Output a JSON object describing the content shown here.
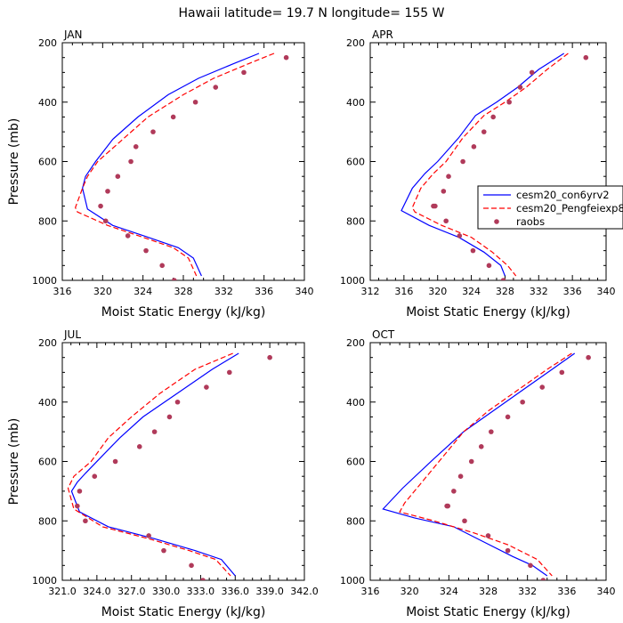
{
  "chart_data": {
    "type": "line",
    "title": "Hawaii  latitude= 19.7 N longitude= 155 W",
    "legend": {
      "placement": "right of APR panel",
      "entries": [
        {
          "label": "cesm20_con6yrv2",
          "style": "solid",
          "color": "#0000ff"
        },
        {
          "label": "cesm20_Pengfeiexp8",
          "style": "dashed",
          "color": "#ff0000"
        },
        {
          "label": "raobs",
          "style": "dots",
          "color": "#b03a5a"
        }
      ]
    },
    "panels": [
      {
        "id": "jan",
        "label": "JAN",
        "xlabel": "Moist Static Energy (kJ/kg)",
        "ylabel": "Pressure (mb)",
        "xlim": [
          316,
          340
        ],
        "ylim": [
          1000,
          200
        ],
        "xticks": [
          316,
          320,
          324,
          328,
          332,
          336,
          340
        ],
        "xtick_labels": [
          "316",
          "320",
          "324",
          "328",
          "332",
          "336",
          "340"
        ],
        "yticks": [
          200,
          400,
          600,
          800,
          1000
        ],
        "ytick_labels": [
          "200",
          "400",
          "600",
          "800",
          "1000"
        ],
        "series": [
          {
            "name": "cesm20_con6yrv2",
            "x": [
              335.5,
              333.0,
              329.5,
              326.5,
              323.5,
              321.0,
              319.3,
              318.3,
              318.0,
              318.5,
              321.0,
              324.5,
              327.5,
              329.0,
              329.8
            ],
            "y": [
              236,
              270,
              320,
              375,
              450,
              525,
              600,
              650,
              690,
              760,
              815,
              855,
              890,
              925,
              985
            ]
          },
          {
            "name": "cesm20_Pengfeiexp8",
            "x": [
              337.0,
              334.5,
              331.0,
              328.0,
              324.5,
              322.0,
              319.5,
              318.5,
              318.0,
              317.3,
              317.5,
              320.5,
              324.0,
              327.0,
              328.5,
              329.3
            ],
            "y": [
              236,
              270,
              320,
              375,
              450,
              525,
              600,
              650,
              690,
              755,
              770,
              815,
              855,
              890,
              925,
              985
            ]
          },
          {
            "name": "raobs",
            "x": [
              338.2,
              334.0,
              331.2,
              329.2,
              327.0,
              325.0,
              323.3,
              322.8,
              321.5,
              320.5,
              319.8,
              320.3,
              322.5,
              324.3,
              325.9,
              327.1
            ],
            "y": [
              250,
              300,
              350,
              400,
              450,
              500,
              550,
              600,
              650,
              700,
              750,
              800,
              850,
              900,
              950,
              1000
            ]
          }
        ]
      },
      {
        "id": "apr",
        "label": "APR",
        "xlabel": "Moist Static Energy (kJ/kg)",
        "ylabel": "",
        "xlim": [
          312,
          340
        ],
        "ylim": [
          1000,
          200
        ],
        "xticks": [
          312,
          316,
          320,
          324,
          328,
          332,
          336,
          340
        ],
        "xtick_labels": [
          "312",
          "316",
          "320",
          "324",
          "328",
          "332",
          "336",
          "340"
        ],
        "yticks": [
          200,
          400,
          600,
          800,
          1000
        ],
        "ytick_labels": [
          "200",
          "400",
          "600",
          "800",
          "1000"
        ],
        "series": [
          {
            "name": "cesm20_con6yrv2",
            "x": [
              335.0,
              332.0,
              329.5,
              327.0,
              324.5,
              322.5,
              320.0,
              318.5,
              317.0,
              315.7,
              319.0,
              322.5,
              325.5,
              327.5,
              328.0
            ],
            "y": [
              236,
              290,
              350,
              400,
              445,
              520,
              600,
              640,
              690,
              765,
              815,
              855,
              905,
              950,
              985
            ]
          },
          {
            "name": "cesm20_Pengfeiexp8",
            "x": [
              335.5,
              333.0,
              330.5,
              328.0,
              325.5,
              323.0,
              321.0,
              319.5,
              318.0,
              317.0,
              317.3,
              320.5,
              324.0,
              326.5,
              328.3,
              329.3
            ],
            "y": [
              236,
              290,
              350,
              400,
              445,
              520,
              600,
              640,
              690,
              755,
              770,
              815,
              855,
              905,
              950,
              985
            ]
          },
          {
            "name": "raobs",
            "x": [
              337.6,
              331.2,
              329.8,
              328.5,
              326.6,
              325.5,
              324.3,
              323.0,
              321.3,
              320.7,
              319.7,
              319.5,
              321.0,
              322.6,
              324.2,
              326.1,
              327.8
            ],
            "y": [
              250,
              300,
              350,
              400,
              450,
              500,
              550,
              600,
              650,
              700,
              750,
              750,
              800,
              850,
              900,
              950,
              1000
            ]
          }
        ]
      },
      {
        "id": "jul",
        "label": "JUL",
        "xlabel": "Moist Static Energy (kJ/kg)",
        "ylabel": "Pressure (mb)",
        "xlim": [
          321,
          342
        ],
        "ylim": [
          1000,
          200
        ],
        "xticks": [
          321,
          324,
          327,
          330,
          333,
          336,
          339,
          342
        ],
        "xtick_labels": [
          "321.0",
          "324.0",
          "327.0",
          "330.0",
          "333.0",
          "336.0",
          "339.0",
          "342.0"
        ],
        "yticks": [
          200,
          400,
          600,
          800,
          1000
        ],
        "ytick_labels": [
          "200",
          "400",
          "600",
          "800",
          "1000"
        ],
        "series": [
          {
            "name": "cesm20_con6yrv2",
            "x": [
              336.3,
              334.0,
              331.0,
              328.0,
              326.0,
              324.5,
              323.0,
              322.3,
              321.8,
              322.5,
              325.0,
              329.0,
              332.5,
              334.8,
              336.0
            ],
            "y": [
              236,
              290,
              370,
              450,
              520,
              580,
              640,
              670,
              700,
              770,
              820,
              860,
              900,
              930,
              985
            ]
          },
          {
            "name": "cesm20_Pengfeiexp8",
            "x": [
              335.8,
              332.5,
              329.5,
              327.0,
              325.0,
              323.5,
              322.0,
              321.5,
              322.0,
              324.5,
              328.5,
              332.0,
              334.3,
              335.6
            ],
            "y": [
              236,
              290,
              370,
              450,
              520,
              600,
              650,
              690,
              760,
              820,
              860,
              900,
              930,
              985
            ]
          },
          {
            "name": "raobs",
            "x": [
              339.0,
              335.5,
              333.5,
              331.0,
              330.3,
              329.0,
              327.7,
              325.6,
              323.8,
              322.5,
              322.3,
              323.0,
              328.5,
              329.8,
              332.2,
              333.2
            ],
            "y": [
              250,
              300,
              350,
              400,
              450,
              500,
              550,
              600,
              650,
              700,
              750,
              800,
              850,
              900,
              950,
              1000
            ]
          }
        ]
      },
      {
        "id": "oct",
        "label": "OCT",
        "xlabel": "Moist Static Energy (kJ/kg)",
        "ylabel": "",
        "xlim": [
          316,
          340
        ],
        "ylim": [
          1000,
          200
        ],
        "xticks": [
          316,
          320,
          324,
          328,
          332,
          336,
          340
        ],
        "xtick_labels": [
          "316",
          "320",
          "324",
          "328",
          "332",
          "336",
          "340"
        ],
        "yticks": [
          200,
          400,
          600,
          800,
          1000
        ],
        "ytick_labels": [
          "200",
          "400",
          "600",
          "800",
          "1000"
        ],
        "series": [
          {
            "name": "cesm20_con6yrv2",
            "x": [
              336.8,
              334.5,
              331.5,
              328.5,
              325.5,
              322.5,
              319.3,
              317.3,
              320.5,
              324.5,
              327.5,
              330.5,
              332.5,
              334.0
            ],
            "y": [
              236,
              290,
              360,
              430,
              500,
              590,
              690,
              760,
              790,
              820,
              870,
              920,
              950,
              985
            ]
          },
          {
            "name": "cesm20_Pengfeiexp8",
            "x": [
              336.5,
              334.0,
              331.0,
              328.0,
              325.5,
              323.0,
              321.0,
              319.5,
              319.0,
              322.5,
              326.5,
              330.0,
              333.0,
              334.5
            ],
            "y": [
              236,
              290,
              360,
              430,
              500,
              600,
              680,
              740,
              770,
              800,
              840,
              880,
              930,
              985
            ]
          },
          {
            "name": "raobs",
            "x": [
              338.2,
              335.5,
              333.5,
              331.5,
              330.0,
              328.3,
              327.3,
              326.3,
              325.2,
              324.5,
              323.8,
              323.9,
              325.6,
              328.0,
              330.0,
              332.3,
              333.6
            ],
            "y": [
              250,
              300,
              350,
              400,
              450,
              500,
              550,
              600,
              650,
              700,
              750,
              750,
              800,
              850,
              900,
              950,
              1000
            ]
          }
        ]
      }
    ]
  }
}
